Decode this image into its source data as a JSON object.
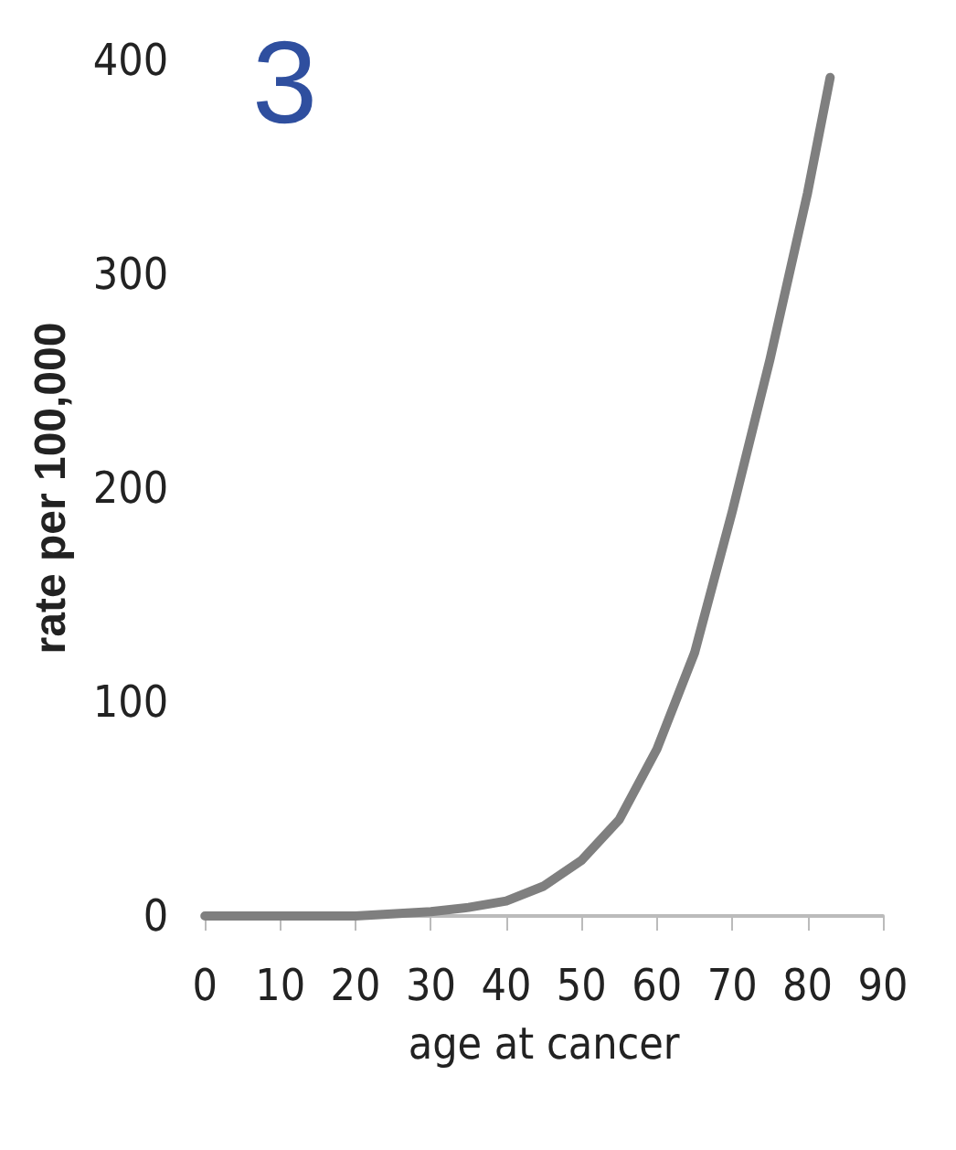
{
  "chart_data": {
    "type": "line",
    "title": "3",
    "xlabel": "age at cancer",
    "ylabel": "rate per 100,000",
    "x": [
      0,
      10,
      20,
      30,
      35,
      40,
      45,
      50,
      55,
      60,
      65,
      70,
      75,
      80,
      83
    ],
    "series": [
      {
        "color": "#7f7f7f",
        "values": [
          0,
          0,
          0,
          2,
          4,
          7,
          14,
          26,
          45,
          78,
          123,
          189,
          260,
          338,
          392
        ]
      }
    ],
    "xlim": [
      0,
      90
    ],
    "xticks": [
      0,
      10,
      20,
      30,
      40,
      50,
      60,
      70,
      80,
      90
    ],
    "ylim": [
      0,
      400
    ],
    "yticks": [
      0,
      100,
      200,
      300,
      400
    ],
    "grid": false,
    "marker": "none",
    "line_style": "solid"
  }
}
